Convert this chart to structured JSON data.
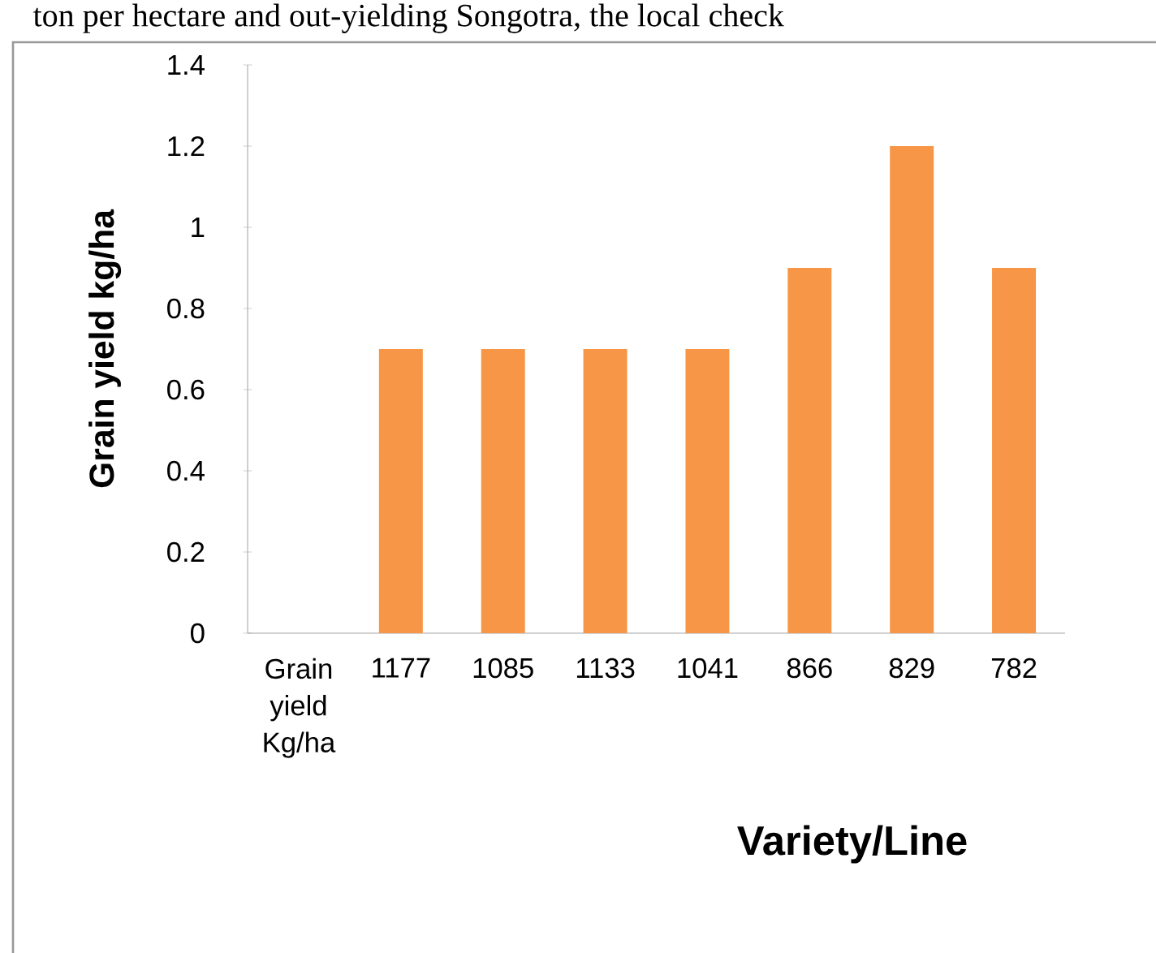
{
  "chart_data": {
    "type": "bar",
    "xlabel": "Variety/Line",
    "ylabel": "Grain yield kg/ha",
    "categories": [
      "Grain yield Kg/ha",
      "1177",
      "1085",
      "1133",
      "1041",
      "866",
      "829",
      "782"
    ],
    "values": [
      null,
      0.7,
      0.7,
      0.7,
      0.7,
      0.9,
      1.2,
      0.9
    ],
    "color": "#f79646",
    "ylim": [
      0,
      1.4
    ],
    "yticks": [
      0,
      0.2,
      0.4,
      0.6,
      0.8,
      1,
      1.2,
      1.4
    ],
    "grid": false,
    "annotations": [
      "ton per hectare and out-yielding Songotra, the local check"
    ]
  }
}
